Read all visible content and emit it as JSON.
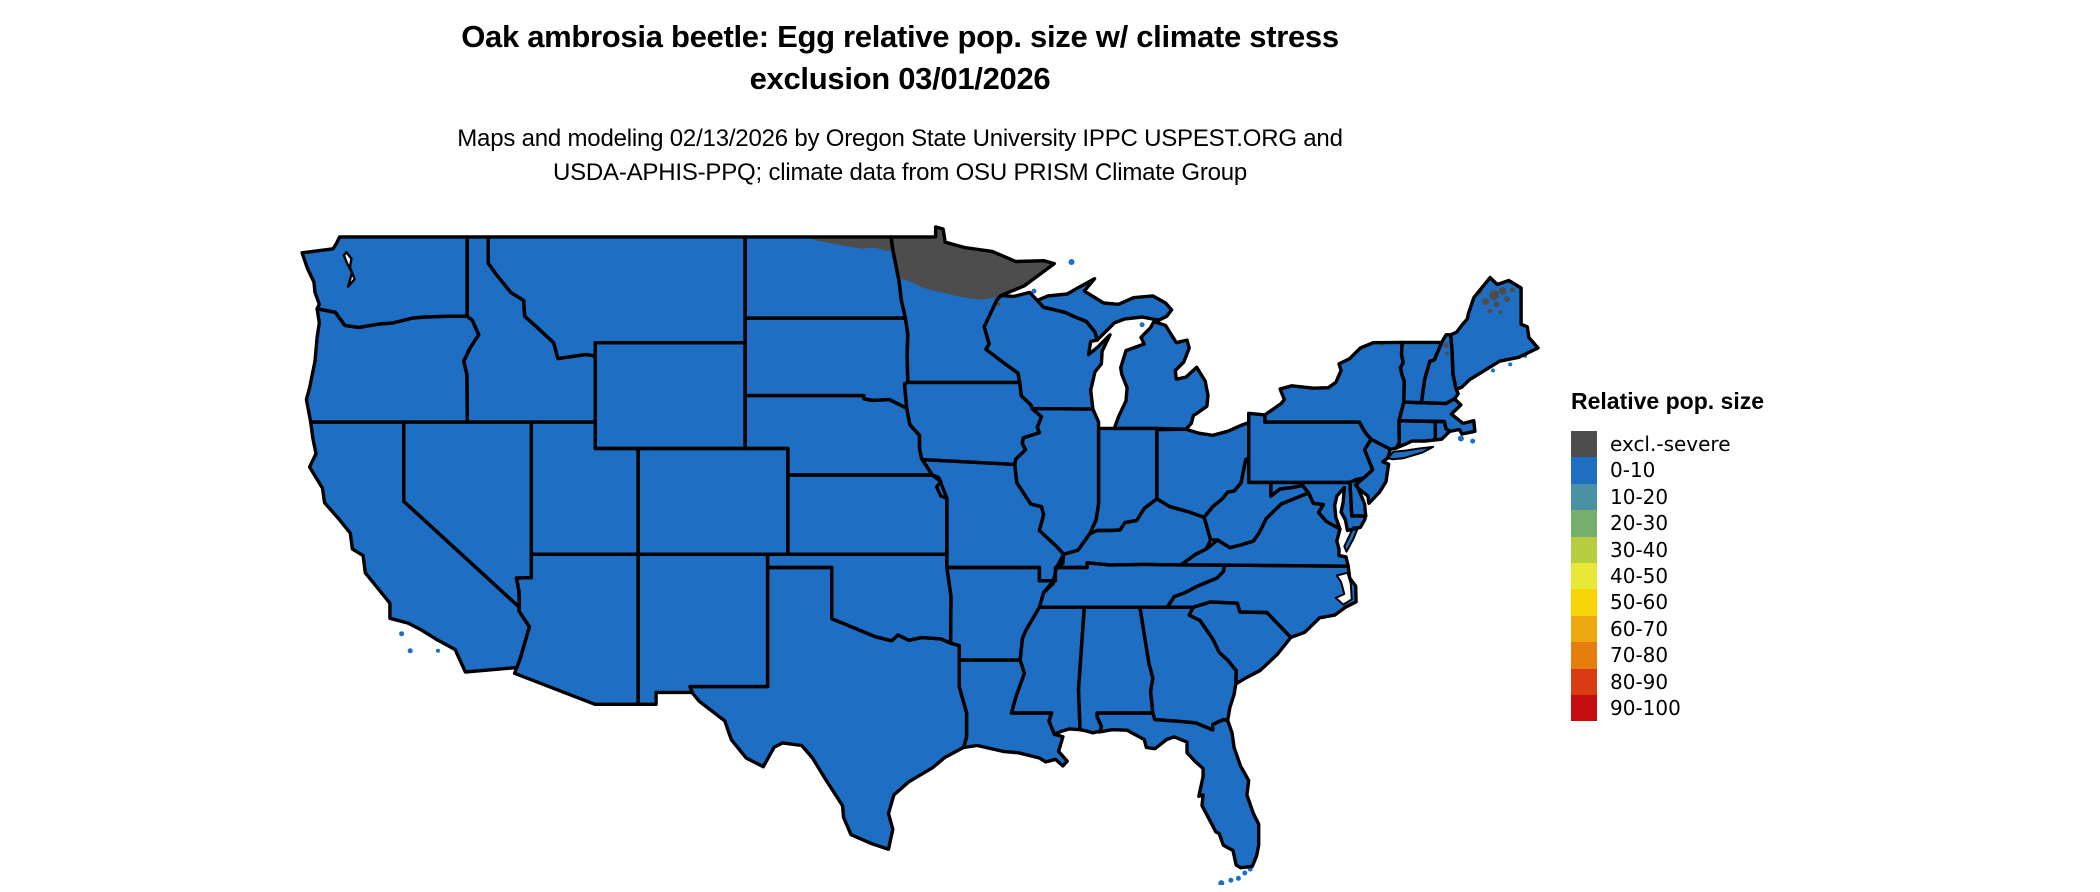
{
  "title": {
    "line1": "Oak ambrosia beetle: Egg relative pop. size w/ climate stress",
    "line2": "exclusion 03/01/2026"
  },
  "subtitle": {
    "line1": "Maps and modeling 02/13/2026 by Oregon State University IPPC USPEST.ORG and",
    "line2": "USDA-APHIS-PPQ; climate data from OSU PRISM Climate Group"
  },
  "legend": {
    "title": "Relative pop. size",
    "items": [
      {
        "label": "excl.-severe",
        "color": "#4d4d4d"
      },
      {
        "label": "0-10",
        "color": "#1e6fc4"
      },
      {
        "label": "10-20",
        "color": "#4a92a3"
      },
      {
        "label": "20-30",
        "color": "#77ad6d"
      },
      {
        "label": "30-40",
        "color": "#b6cc41"
      },
      {
        "label": "40-50",
        "color": "#e8e839"
      },
      {
        "label": "50-60",
        "color": "#f7d507"
      },
      {
        "label": "60-70",
        "color": "#eda812"
      },
      {
        "label": "70-80",
        "color": "#e57d0f"
      },
      {
        "label": "80-90",
        "color": "#da3b12"
      },
      {
        "label": "90-100",
        "color": "#c60d0d"
      }
    ]
  },
  "map": {
    "region": "Continental United States",
    "border_color": "#000000",
    "water_color": "#ffffff",
    "default_category": "0-10",
    "default_fill": "#1e6fc4",
    "exclusion_category": "excl.-severe",
    "exclusion_fill": "#4d4d4d",
    "excluded_areas": [
      "northern Minnesota",
      "strip along northern North Dakota (Canadian border)",
      "scattered patches in northern Maine",
      "small specks in northern New Hampshire, Vermont, New York border and near Duluth"
    ]
  }
}
